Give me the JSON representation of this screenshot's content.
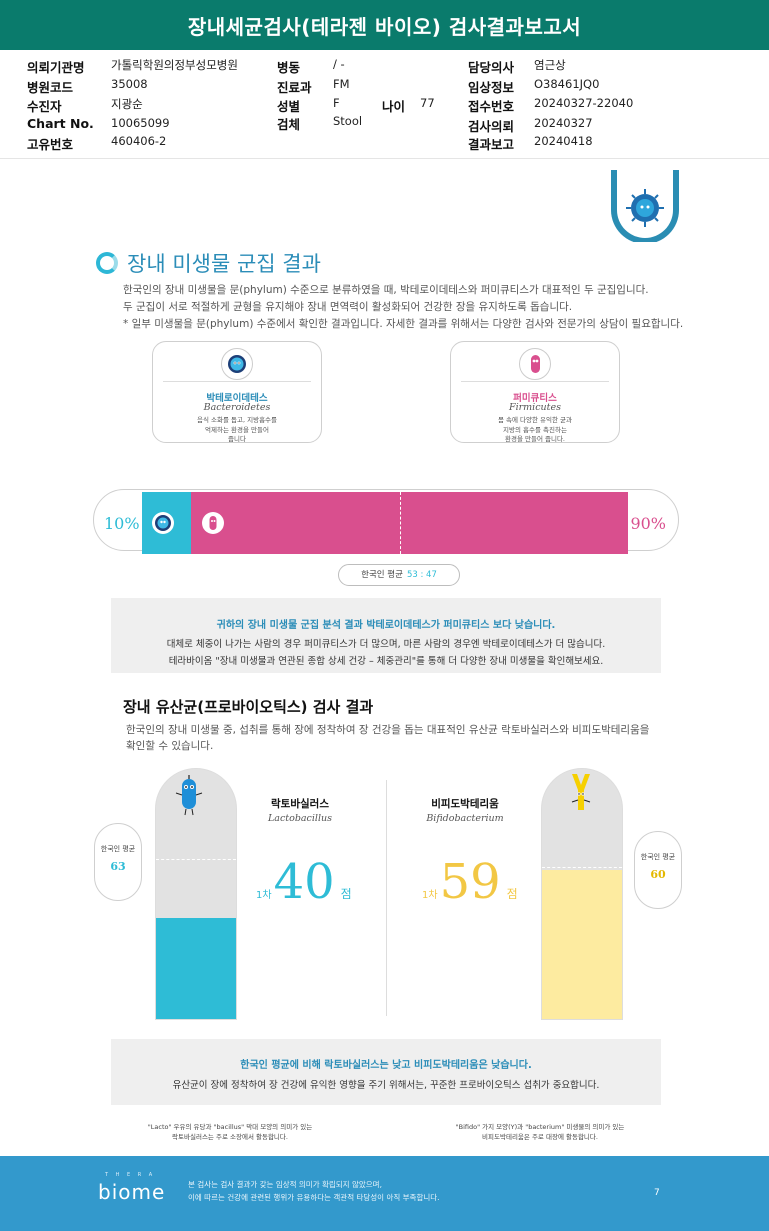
{
  "header": {
    "title": "장내세균검사(테라젠 바이오) 검사결과보고서"
  },
  "info": {
    "requesting_org_label": "의뢰기관명",
    "requesting_org": "가톨릭학원의정부성모병원",
    "hospital_code_label": "병원코드",
    "hospital_code": "35008",
    "patient_label": "수진자",
    "patient": "지광순",
    "chart_no_label": "Chart No.",
    "chart_no": "10065099",
    "unique_no_label": "고유번호",
    "unique_no": "460406-2",
    "ward_label": "병동",
    "ward": "/ -",
    "department_label": "진료과",
    "department": "FM",
    "sex_label": "성별",
    "sex": "F",
    "age_label": "나이",
    "age": "77",
    "specimen_label": "검체",
    "specimen": "Stool",
    "doctor_label": "담당의사",
    "doctor": "염근상",
    "clinical_info_label": "임상정보",
    "clinical_info": "O38461JQ0",
    "receipt_no_label": "접수번호",
    "receipt_no": "20240327-22040",
    "test_request_label": "검사의뢰",
    "test_request": "20240327",
    "result_report_label": "결과보고",
    "result_report": "20240418"
  },
  "section1": {
    "title": "장내 미생물 군집 결과",
    "para1": "한국인의 장내 미생물을 문(phylum) 수준으로 분류하였을 때, 박테로이데테스와 퍼미큐티스가 대표적인 두 군집입니다.",
    "para2": "두 군집이 서로 적절하게 균형을 유지해야 장내 면역력이 활성화되어 건강한 장을 유지하도록 돕습니다.",
    "para3": "* 일부 미생물을 문(phylum) 수준에서 확인한 결과입니다. 자세한 결과를 위해서는 다양한 검사와 전문가의 상담이 필요합니다.",
    "card_left": {
      "name_kr": "박테로이데테스",
      "name_en": "Bacteroidetes",
      "desc1": "음식 소화를 돕고, 지방흡수를",
      "desc2": "억제하는 환경을 만들어",
      "desc3": "줍니다"
    },
    "card_right": {
      "name_kr": "퍼미큐티스",
      "name_en": "Firmicutes",
      "desc1": "몸 속에 다양한 유익한 균과",
      "desc2": "지방의 흡수를 촉진하는",
      "desc3": "환경을 만들어 줍니다."
    },
    "ratio": {
      "bacteroidetes_pct": 10,
      "firmicutes_pct": 90,
      "left_label": "10%",
      "right_label": "90%"
    },
    "avg_label": "한국인 평균",
    "avg_value": "53 : 47",
    "summary_head": "귀하의 장내 미생물 군집 분석 결과 박테로이데테스가 퍼미큐티스 보다 낮습니다.",
    "summary_l1": "대체로 체중이 나가는 사람의 경우 퍼미큐티스가 더 많으며, 마른 사람의 경우엔 박테로이데테스가 더 많습니다.",
    "summary_l2": "테라바이옴 \"장내 미생물과 연관된 종합 상세 건강 – 체중관리\"를 통해 더 다양한 장내 미생물을 확인해보세요."
  },
  "section2": {
    "title": "장내 유산균(프로바이오틱스) 검사 결과",
    "para1": "한국인의 장내 미생물 중, 섭취를 통해 장에 정착하여 장 건강을 돕는 대표적인 유산균 락토바실러스와 비피도박테리움을",
    "para2": "확인할 수 있습니다.",
    "lacto": {
      "name_kr": "락토바실러스",
      "name_en": "Lactobacillus",
      "round": "1차",
      "score": "40",
      "unit": "점",
      "score_value": 40,
      "avg_label": "한국인 평균",
      "avg": "63",
      "avg_value": 63
    },
    "bifido": {
      "name_kr": "비피도박테리움",
      "name_en": "Bifidobacterium",
      "round": "1차",
      "score": "59",
      "unit": "점",
      "score_value": 59,
      "avg_label": "한국인 평균",
      "avg": "60",
      "avg_value": 60
    },
    "summary_head": "한국인 평균에 비해 락토바실러스는 낮고 비피도박테리움은 낮습니다.",
    "summary_l1": "유산균이 장에 정착하여 장 건강에 유익한 영향을 주기 위해서는, 꾸준한 프로바이오틱스 섭취가 중요합니다.",
    "note_left1": "\"Lacto\" 우유의 유당과 \"bacillus\" 막대 모양의 의미가 있는",
    "note_left2": "락토바실러스는 주로 소장에서 활동합니다.",
    "note_right1": "\"Bifido\" 가지 모양(Y)과 \"bacterium\" 미생물의 의미가 있는",
    "note_right2": "비피도박테리움은 주로 대장에 활동합니다."
  },
  "footer": {
    "logo_small": "T H E R A",
    "logo": "biome",
    "line1": "본 검사는 검사 결과가 갖는 임상적 의미가 확립되지 않았으며,",
    "line2": "이에 따르는 건강에 관련된 행위가 유용하다는 객관적 타당성이 아직 부족합니다.",
    "page": "7"
  },
  "colors": {
    "header": "#0a7b6c",
    "cyan": "#2ebcd6",
    "pink": "#d94f8e",
    "yellow": "#f6d54a",
    "footer": "#3399cc"
  }
}
